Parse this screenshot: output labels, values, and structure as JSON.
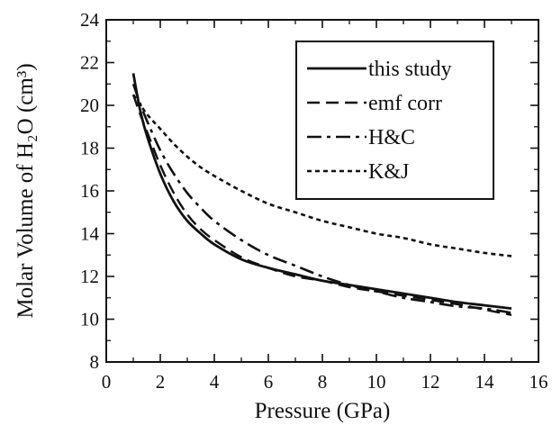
{
  "chart_data": {
    "type": "line",
    "xlabel": "Pressure (GPa)",
    "ylabel": "Molar Volume of H₂O (cm³)",
    "xlim": [
      0,
      16
    ],
    "ylim": [
      8,
      24
    ],
    "xticks": [
      "0",
      "2",
      "4",
      "6",
      "8",
      "10",
      "12",
      "14",
      "16"
    ],
    "yticks": [
      "8",
      "10",
      "12",
      "14",
      "16",
      "18",
      "20",
      "22",
      "24"
    ],
    "grid": false,
    "legend_position": "top-right",
    "series": [
      {
        "name": "this study",
        "style": "solid",
        "x": [
          1.0,
          1.25,
          1.5,
          2.0,
          2.5,
          3.0,
          3.5,
          4.0,
          5.0,
          6.0,
          7.0,
          8.0,
          9.0,
          10.0,
          11.0,
          12.0,
          13.0,
          14.0,
          15.0
        ],
        "y": [
          21.5,
          19.8,
          18.6,
          16.8,
          15.5,
          14.6,
          14.0,
          13.5,
          12.8,
          12.4,
          12.1,
          11.8,
          11.6,
          11.4,
          11.2,
          11.0,
          10.8,
          10.65,
          10.5
        ]
      },
      {
        "name": "emf corr",
        "style": "dashed",
        "x": [
          1.0,
          1.25,
          1.5,
          2.0,
          2.5,
          3.0,
          3.5,
          4.0,
          5.0,
          6.0,
          7.0,
          8.0,
          9.0,
          10.0,
          11.0,
          12.0,
          13.0,
          14.0,
          15.0
        ],
        "y": [
          20.5,
          19.6,
          18.8,
          17.2,
          15.9,
          14.9,
          14.2,
          13.7,
          12.9,
          12.4,
          12.0,
          11.8,
          11.5,
          11.3,
          11.1,
          10.9,
          10.7,
          10.45,
          10.2
        ]
      },
      {
        "name": "H&C",
        "style": "dash-dot",
        "x": [
          1.0,
          1.25,
          1.5,
          2.0,
          2.5,
          3.0,
          3.5,
          4.0,
          5.0,
          6.0,
          7.0,
          8.0,
          9.0,
          10.0,
          11.0,
          12.0,
          13.0,
          14.0,
          15.0
        ],
        "y": [
          21.0,
          20.1,
          19.3,
          17.9,
          16.8,
          15.9,
          15.2,
          14.6,
          13.7,
          13.0,
          12.5,
          12.0,
          11.6,
          11.3,
          11.0,
          10.8,
          10.6,
          10.5,
          10.3
        ]
      },
      {
        "name": "K&J",
        "style": "dotted",
        "x": [
          1.0,
          1.5,
          2.0,
          2.5,
          3.0,
          3.5,
          4.0,
          5.0,
          6.0,
          7.0,
          8.0,
          9.0,
          10.0,
          11.0,
          12.0,
          13.0,
          14.0,
          15.0
        ],
        "y": [
          20.5,
          19.6,
          18.9,
          18.2,
          17.6,
          17.1,
          16.7,
          16.0,
          15.4,
          15.0,
          14.6,
          14.3,
          14.0,
          13.8,
          13.5,
          13.3,
          13.1,
          12.95
        ]
      }
    ]
  }
}
